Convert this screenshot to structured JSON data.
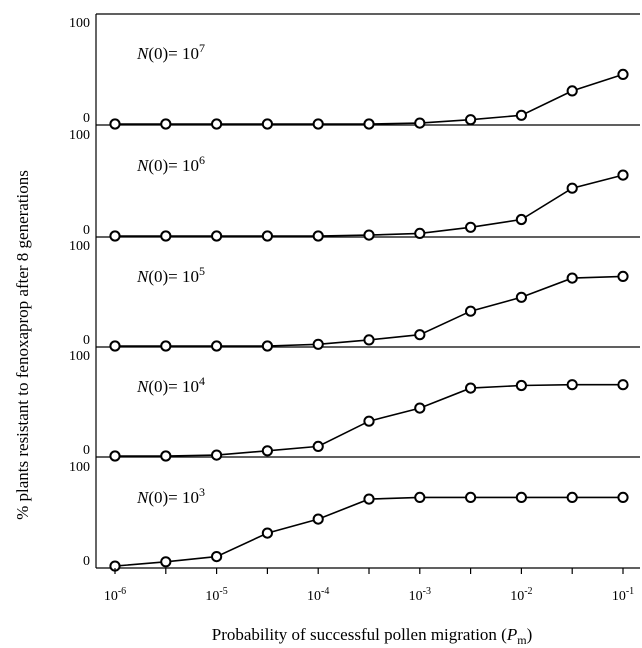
{
  "ylabel": "% plants resistant to fenoxaprop after 8 generations",
  "xlabel": {
    "text": "Probability of successful pollen migration (",
    "var": "P",
    "sub": "m",
    "close": ")"
  },
  "x_ticks": [
    {
      "base": "10",
      "exp": "-6"
    },
    {
      "base": "10",
      "exp": "-5"
    },
    {
      "base": "10",
      "exp": "-4"
    },
    {
      "base": "10",
      "exp": "-3"
    },
    {
      "base": "10",
      "exp": "-2"
    },
    {
      "base": "10",
      "exp": "-1"
    }
  ],
  "y_ticks": [
    "0",
    "100"
  ],
  "chart_data": {
    "type": "line",
    "layout": "stacked-panels",
    "x_scale": "log",
    "xlim": [
      1e-06,
      0.1
    ],
    "ylim": [
      0,
      100
    ],
    "grid": false,
    "marker": "open-circle",
    "x": [
      1e-06,
      3.16e-06,
      1e-05,
      3.16e-05,
      0.0001,
      0.000316,
      0.001,
      0.00316,
      0.01,
      0.0316,
      0.1
    ],
    "panels": [
      {
        "label_prefix": "N",
        "label_mid": "(0)= 10",
        "label_exp": "7",
        "values": [
          0,
          0,
          0,
          0,
          0,
          0,
          1,
          5,
          10,
          38,
          57
        ]
      },
      {
        "label_prefix": "N",
        "label_mid": "(0)= 10",
        "label_exp": "6",
        "values": [
          0,
          0,
          0,
          0,
          0,
          1,
          3,
          10,
          19,
          55,
          70
        ]
      },
      {
        "label_prefix": "N",
        "label_mid": "(0)= 10",
        "label_exp": "5",
        "values": [
          0,
          0,
          0,
          0,
          2,
          7,
          13,
          40,
          56,
          78,
          80
        ]
      },
      {
        "label_prefix": "N",
        "label_mid": "(0)= 10",
        "label_exp": "4",
        "values": [
          0,
          0,
          1,
          6,
          11,
          40,
          55,
          78,
          81,
          82,
          82
        ]
      },
      {
        "label_prefix": "N",
        "label_mid": "(0)= 10",
        "label_exp": "3",
        "values": [
          1,
          6,
          12,
          39,
          55,
          78,
          80,
          80,
          80,
          80,
          80
        ]
      }
    ]
  }
}
